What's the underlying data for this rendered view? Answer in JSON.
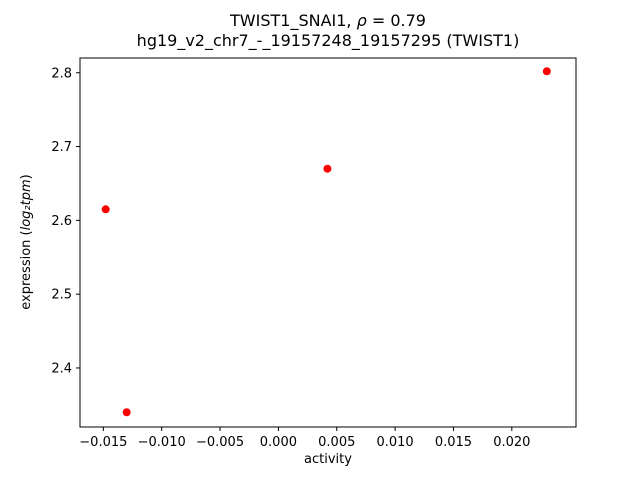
{
  "figure": {
    "title_l1_prefix": "TWIST1_SNAI1, ",
    "title_l1_rho": "ρ",
    "title_l1_rest": " = 0.79",
    "title_line2": "hg19_v2_chr7_-_19157248_19157295 (TWIST1)",
    "xlabel": "activity",
    "ylabel_prefix": "expression (",
    "ylabel_math": "log₂tpm",
    "ylabel_suffix": ")"
  },
  "chart_data": {
    "type": "scatter",
    "title": "TWIST1_SNAI1, ρ = 0.79\nhg19_v2_chr7_-_19157248_19157295 (TWIST1)",
    "xlabel": "activity",
    "ylabel": "expression (log2 tpm)",
    "marker_color": "#ff0000",
    "marker_radius": 4,
    "points": [
      {
        "x": -0.0148,
        "y": 2.615
      },
      {
        "x": -0.013,
        "y": 2.34
      },
      {
        "x": 0.0042,
        "y": 2.67
      },
      {
        "x": 0.023,
        "y": 2.802
      }
    ],
    "xlim": [
      -0.017,
      0.0255
    ],
    "ylim": [
      2.32,
      2.82
    ],
    "xticks": [
      -0.015,
      -0.01,
      -0.005,
      0.0,
      0.005,
      0.01,
      0.015,
      0.02
    ],
    "yticks": [
      2.4,
      2.5,
      2.6,
      2.7,
      2.8
    ],
    "grid": false,
    "legend": null
  }
}
